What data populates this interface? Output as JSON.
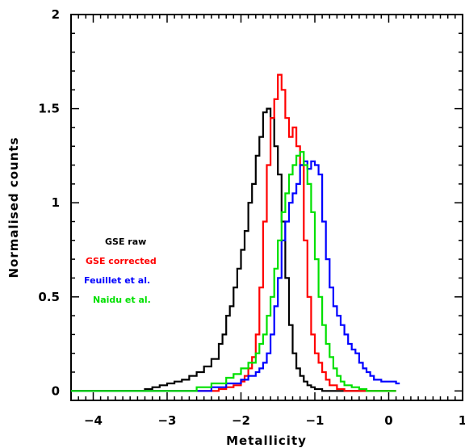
{
  "chart_data": {
    "type": "line",
    "xlabel": "Metallicity",
    "ylabel": "Normalised counts",
    "xlim": [
      -4.3,
      1.0
    ],
    "ylim": [
      -0.05,
      2.0
    ],
    "x_ticks": [
      -4,
      -3,
      -2,
      -1,
      0,
      1
    ],
    "x_tick_labels": [
      "−4",
      "−3",
      "−2",
      "−1",
      "0",
      "1"
    ],
    "y_ticks": [
      0,
      0.5,
      1,
      1.5,
      2
    ],
    "y_tick_labels": [
      "0",
      "0.5",
      "1",
      "1.5",
      "2"
    ],
    "grid": false,
    "legend_position": "left",
    "series": [
      {
        "name": "GSE raw",
        "color": "#000000",
        "x": [
          -4.3,
          -3.5,
          -3.3,
          -3.2,
          -3.1,
          -3.0,
          -2.9,
          -2.8,
          -2.7,
          -2.6,
          -2.5,
          -2.4,
          -2.3,
          -2.25,
          -2.2,
          -2.15,
          -2.1,
          -2.05,
          -2.0,
          -1.95,
          -1.9,
          -1.85,
          -1.8,
          -1.75,
          -1.7,
          -1.65,
          -1.6,
          -1.55,
          -1.5,
          -1.45,
          -1.4,
          -1.35,
          -1.3,
          -1.25,
          -1.2,
          -1.15,
          -1.1,
          -1.05,
          -1.0,
          -0.95,
          -0.9,
          -0.8,
          -0.7,
          0.1
        ],
        "y": [
          0.0,
          0.0,
          0.01,
          0.02,
          0.03,
          0.04,
          0.05,
          0.06,
          0.08,
          0.1,
          0.13,
          0.17,
          0.25,
          0.3,
          0.4,
          0.45,
          0.55,
          0.65,
          0.75,
          0.85,
          1.0,
          1.1,
          1.25,
          1.35,
          1.48,
          1.5,
          1.45,
          1.3,
          1.15,
          0.9,
          0.6,
          0.35,
          0.2,
          0.12,
          0.08,
          0.05,
          0.03,
          0.02,
          0.01,
          0.01,
          0.0,
          0.0,
          0.0,
          0.0
        ]
      },
      {
        "name": "GSE corrected",
        "color": "#ff0000",
        "x": [
          -4.3,
          -2.5,
          -2.3,
          -2.2,
          -2.1,
          -2.0,
          -1.95,
          -1.9,
          -1.85,
          -1.8,
          -1.75,
          -1.7,
          -1.65,
          -1.6,
          -1.55,
          -1.5,
          -1.45,
          -1.4,
          -1.35,
          -1.3,
          -1.25,
          -1.2,
          -1.15,
          -1.1,
          -1.05,
          -1.0,
          -0.95,
          -0.9,
          -0.85,
          -0.8,
          -0.7,
          -0.6,
          0.1
        ],
        "y": [
          0.0,
          0.0,
          0.01,
          0.02,
          0.03,
          0.05,
          0.08,
          0.12,
          0.18,
          0.3,
          0.55,
          0.9,
          1.2,
          1.45,
          1.55,
          1.68,
          1.6,
          1.45,
          1.35,
          1.4,
          1.3,
          1.2,
          0.8,
          0.5,
          0.3,
          0.2,
          0.15,
          0.1,
          0.06,
          0.03,
          0.01,
          0.0,
          0.0
        ]
      },
      {
        "name": "Feuillet et al.",
        "color": "#0000ff",
        "x": [
          -4.3,
          -2.6,
          -2.4,
          -2.2,
          -2.0,
          -1.9,
          -1.8,
          -1.75,
          -1.7,
          -1.65,
          -1.6,
          -1.55,
          -1.5,
          -1.45,
          -1.4,
          -1.35,
          -1.3,
          -1.25,
          -1.2,
          -1.15,
          -1.1,
          -1.05,
          -1.0,
          -0.95,
          -0.9,
          -0.85,
          -0.8,
          -0.75,
          -0.7,
          -0.65,
          -0.6,
          -0.55,
          -0.5,
          -0.45,
          -0.4,
          -0.35,
          -0.3,
          -0.25,
          -0.2,
          -0.1,
          0.0,
          0.1,
          0.15
        ],
        "y": [
          0.0,
          0.0,
          0.02,
          0.04,
          0.06,
          0.08,
          0.1,
          0.12,
          0.15,
          0.2,
          0.3,
          0.45,
          0.6,
          0.8,
          0.9,
          1.0,
          1.05,
          1.1,
          1.2,
          1.22,
          1.18,
          1.22,
          1.2,
          1.15,
          0.9,
          0.7,
          0.55,
          0.45,
          0.4,
          0.35,
          0.3,
          0.25,
          0.22,
          0.2,
          0.15,
          0.12,
          0.1,
          0.08,
          0.06,
          0.05,
          0.05,
          0.04,
          0.04
        ]
      },
      {
        "name": "Naidu et al.",
        "color": "#00e000",
        "x": [
          -4.3,
          -2.8,
          -2.6,
          -2.4,
          -2.2,
          -2.1,
          -2.0,
          -1.9,
          -1.8,
          -1.75,
          -1.7,
          -1.65,
          -1.6,
          -1.55,
          -1.5,
          -1.45,
          -1.4,
          -1.35,
          -1.3,
          -1.25,
          -1.2,
          -1.15,
          -1.1,
          -1.05,
          -1.0,
          -0.95,
          -0.9,
          -0.85,
          -0.8,
          -0.75,
          -0.7,
          -0.65,
          -0.6,
          -0.5,
          -0.4,
          -0.3,
          0.1
        ],
        "y": [
          0.0,
          0.0,
          0.02,
          0.04,
          0.07,
          0.09,
          0.12,
          0.15,
          0.2,
          0.25,
          0.3,
          0.4,
          0.5,
          0.65,
          0.8,
          0.95,
          1.05,
          1.15,
          1.2,
          1.25,
          1.27,
          1.2,
          1.1,
          0.95,
          0.7,
          0.5,
          0.35,
          0.25,
          0.18,
          0.12,
          0.08,
          0.05,
          0.03,
          0.02,
          0.01,
          0.0,
          0.0
        ]
      }
    ]
  }
}
